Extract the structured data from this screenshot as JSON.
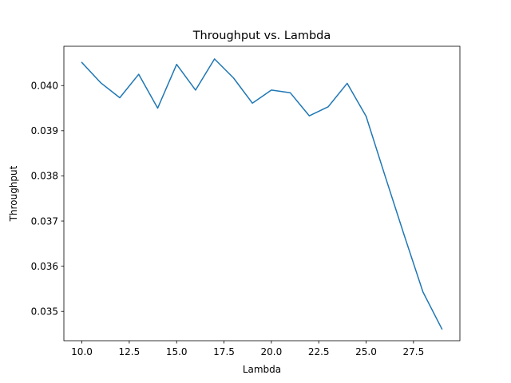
{
  "chart_data": {
    "type": "line",
    "title": "Throughput vs. Lambda",
    "xlabel": "Lambda",
    "ylabel": "Throughput",
    "xlim": [
      9.05,
      29.95
    ],
    "ylim": [
      0.03435,
      0.04087
    ],
    "xticks": [
      10.0,
      12.5,
      15.0,
      17.5,
      20.0,
      22.5,
      25.0,
      27.5
    ],
    "xtick_labels": [
      "10.0",
      "12.5",
      "15.0",
      "17.5",
      "20.0",
      "22.5",
      "25.0",
      "27.5"
    ],
    "yticks": [
      0.035,
      0.036,
      0.037,
      0.038,
      0.039,
      0.04
    ],
    "ytick_labels": [
      "0.035",
      "0.036",
      "0.037",
      "0.038",
      "0.039",
      "0.040"
    ],
    "grid": false,
    "legend": "none",
    "series": [
      {
        "color": "#1f77b4",
        "x": [
          10,
          11,
          12,
          13,
          14,
          15,
          16,
          17,
          18,
          19,
          20,
          21,
          22,
          23,
          24,
          25,
          26,
          27,
          28,
          29
        ],
        "y": [
          0.04051,
          0.04006,
          0.03973,
          0.04025,
          0.0395,
          0.04047,
          0.0399,
          0.04059,
          0.04017,
          0.03961,
          0.0399,
          0.03984,
          0.03933,
          0.03953,
          0.04005,
          0.03932,
          0.038,
          0.0367,
          0.03543,
          0.03461
        ]
      }
    ]
  }
}
